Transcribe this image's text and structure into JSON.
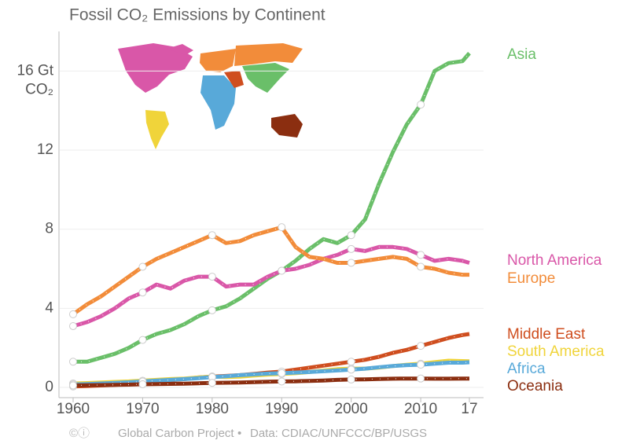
{
  "chart_data": {
    "type": "line",
    "title": "Fossil CO₂ Emissions by Continent",
    "y_unit": "CO₂",
    "footer": [
      "Global Carbon Project",
      "Data: CDIAC/UNFCCC/BP/USGS"
    ],
    "x": [
      1960,
      1962,
      1964,
      1966,
      1968,
      1970,
      1972,
      1974,
      1976,
      1978,
      1980,
      1982,
      1984,
      1986,
      1988,
      1990,
      1992,
      1994,
      1996,
      1998,
      2000,
      2002,
      2004,
      2006,
      2008,
      2010,
      2012,
      2014,
      2016,
      2017
    ],
    "xlim": [
      1960,
      2017
    ],
    "xticks": [
      1960,
      1970,
      1980,
      1990,
      2000,
      2010,
      {
        "value": 2017,
        "label": "17"
      }
    ],
    "ylim": [
      0,
      18
    ],
    "yticks": [
      0,
      4,
      8,
      12,
      {
        "value": 16,
        "label": "16 Gt"
      }
    ],
    "grid": true,
    "series": [
      {
        "name": "Asia",
        "color": "#6abf69",
        "values": [
          1.3,
          1.3,
          1.5,
          1.7,
          2.0,
          2.4,
          2.7,
          2.9,
          3.2,
          3.6,
          3.9,
          4.1,
          4.5,
          5.0,
          5.5,
          5.9,
          6.4,
          7.0,
          7.5,
          7.3,
          7.7,
          8.5,
          10.3,
          11.9,
          13.3,
          14.3,
          16.0,
          16.4,
          16.5,
          16.9
        ]
      },
      {
        "name": "North America",
        "color": "#d957a8",
        "values": [
          3.1,
          3.3,
          3.6,
          4.0,
          4.5,
          4.8,
          5.2,
          5.0,
          5.4,
          5.6,
          5.6,
          5.1,
          5.2,
          5.2,
          5.6,
          5.9,
          6.0,
          6.2,
          6.5,
          6.7,
          7.0,
          6.9,
          7.1,
          7.1,
          7.0,
          6.7,
          6.4,
          6.5,
          6.4,
          6.3
        ]
      },
      {
        "name": "Europe",
        "color": "#f28c3a",
        "values": [
          3.7,
          4.2,
          4.6,
          5.1,
          5.6,
          6.1,
          6.5,
          6.8,
          7.1,
          7.4,
          7.7,
          7.3,
          7.4,
          7.7,
          7.9,
          8.1,
          7.1,
          6.6,
          6.5,
          6.3,
          6.3,
          6.4,
          6.5,
          6.6,
          6.5,
          6.1,
          6.0,
          5.8,
          5.7,
          5.7
        ]
      },
      {
        "name": "Middle East",
        "color": "#cf4e1f",
        "values": [
          0.05,
          0.07,
          0.1,
          0.13,
          0.17,
          0.22,
          0.3,
          0.36,
          0.42,
          0.5,
          0.55,
          0.58,
          0.62,
          0.68,
          0.75,
          0.8,
          0.9,
          1.0,
          1.1,
          1.2,
          1.3,
          1.4,
          1.55,
          1.75,
          1.9,
          2.1,
          2.3,
          2.5,
          2.65,
          2.7
        ]
      },
      {
        "name": "South America",
        "color": "#f0d43a",
        "values": [
          0.2,
          0.22,
          0.25,
          0.28,
          0.3,
          0.34,
          0.38,
          0.42,
          0.45,
          0.5,
          0.55,
          0.53,
          0.55,
          0.6,
          0.65,
          0.68,
          0.72,
          0.78,
          0.85,
          0.92,
          0.95,
          0.95,
          1.0,
          1.08,
          1.15,
          1.2,
          1.28,
          1.35,
          1.33,
          1.32
        ]
      },
      {
        "name": "Africa",
        "color": "#58a9d9",
        "values": [
          0.15,
          0.17,
          0.2,
          0.23,
          0.26,
          0.3,
          0.34,
          0.38,
          0.42,
          0.47,
          0.52,
          0.57,
          0.62,
          0.66,
          0.7,
          0.72,
          0.75,
          0.78,
          0.82,
          0.86,
          0.9,
          0.95,
          1.02,
          1.08,
          1.13,
          1.15,
          1.2,
          1.25,
          1.25,
          1.27
        ]
      },
      {
        "name": "Oceania",
        "color": "#8b2e10",
        "values": [
          0.1,
          0.11,
          0.12,
          0.13,
          0.14,
          0.16,
          0.17,
          0.18,
          0.19,
          0.21,
          0.23,
          0.24,
          0.25,
          0.27,
          0.29,
          0.3,
          0.31,
          0.33,
          0.35,
          0.38,
          0.4,
          0.41,
          0.43,
          0.44,
          0.45,
          0.45,
          0.44,
          0.44,
          0.45,
          0.45
        ]
      }
    ]
  }
}
